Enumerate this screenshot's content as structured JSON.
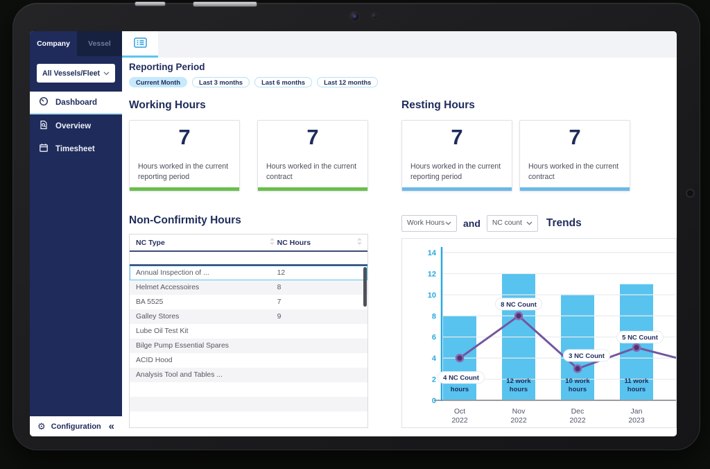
{
  "sidebar": {
    "tabs": [
      {
        "label": "Company",
        "active": true
      },
      {
        "label": "Vessel",
        "active": false
      }
    ],
    "fleet_select": {
      "value": "All Vessels/Fleet"
    },
    "items": [
      {
        "label": "Dashboard",
        "icon": "gauge-icon",
        "active": true
      },
      {
        "label": "Overview",
        "icon": "document-search-icon",
        "active": false
      },
      {
        "label": "Timesheet",
        "icon": "calendar-icon",
        "active": false
      }
    ],
    "footer": {
      "label": "Configuration"
    }
  },
  "reporting_period": {
    "title": "Reporting Period",
    "chips": [
      {
        "label": "Current Month",
        "active": true
      },
      {
        "label": "Last 3 months",
        "active": false
      },
      {
        "label": "Last 6 months",
        "active": false
      },
      {
        "label": "Last 12 months",
        "active": false
      }
    ]
  },
  "working_hours": {
    "title": "Working Hours",
    "accent": "#6abf4b",
    "cards": [
      {
        "value": "7",
        "label": "Hours worked in the current reporting period"
      },
      {
        "value": "7",
        "label": "Hours worked in the current contract"
      }
    ]
  },
  "resting_hours": {
    "title": "Resting Hours",
    "accent": "#6cb9e9",
    "cards": [
      {
        "value": "7",
        "label": "Hours worked in the current reporting period"
      },
      {
        "value": "7",
        "label": "Hours worked in the current contract"
      }
    ]
  },
  "nc_table": {
    "title": "Non-Confirmity Hours",
    "columns": [
      "NC Type",
      "NC Hours"
    ],
    "rows": [
      {
        "type": "Annual Inspection of ...",
        "hours": "12",
        "selected": true
      },
      {
        "type": "Helmet Accessoires",
        "hours": "8",
        "selected": false
      },
      {
        "type": "BA 5525",
        "hours": "7",
        "selected": false
      },
      {
        "type": "Galley Stores",
        "hours": "9",
        "selected": false
      },
      {
        "type": "Lube Oil Test Kit",
        "hours": "",
        "selected": false
      },
      {
        "type": "Bilge Pump Essential Spares",
        "hours": "",
        "selected": false
      },
      {
        "type": "ACID Hood",
        "hours": "",
        "selected": false
      },
      {
        "type": "Analysis Tool and Tables ...",
        "hours": "",
        "selected": false
      }
    ],
    "filler_rows": 3
  },
  "trends": {
    "metric1": "Work Hours",
    "conjunction": "and",
    "metric2": "NC count",
    "title": "Trends"
  },
  "chart_data": {
    "type": "bar",
    "categories": [
      [
        "Oct",
        "2022"
      ],
      [
        "Nov",
        "2022"
      ],
      [
        "Dec",
        "2022"
      ],
      [
        "Jan",
        "2023"
      ]
    ],
    "series": [
      {
        "name": "Work Hours",
        "type": "bar",
        "values": [
          8,
          12,
          10,
          11
        ],
        "color": "#58c3ee",
        "labels": [
          "8 work hours",
          "12 work hours",
          "10 work hours",
          "11 work hours"
        ]
      },
      {
        "name": "NC Count",
        "type": "line",
        "values": [
          4,
          8,
          3,
          5
        ],
        "color": "#7456a0",
        "labels": [
          "4 NC Count",
          "8 NC Count",
          "3 NC Count",
          "5 NC Count"
        ],
        "value_at_right_edge": 4
      }
    ],
    "ylim": [
      0,
      14
    ],
    "yticks": [
      0,
      2,
      4,
      6,
      8,
      10,
      12,
      14
    ],
    "axis_color": "#29a8e0",
    "grid": true,
    "legend": "none"
  }
}
